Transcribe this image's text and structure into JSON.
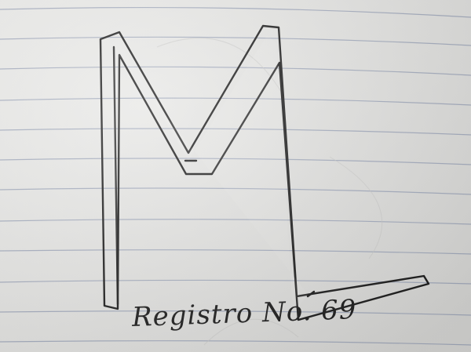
{
  "drawing": {
    "caption": "Registro No. 69",
    "monogram_letters": "ML",
    "ink_color": "#1a1a1a",
    "rule_color": "#9aa3b8",
    "paper_color": "#e8e8e6"
  }
}
